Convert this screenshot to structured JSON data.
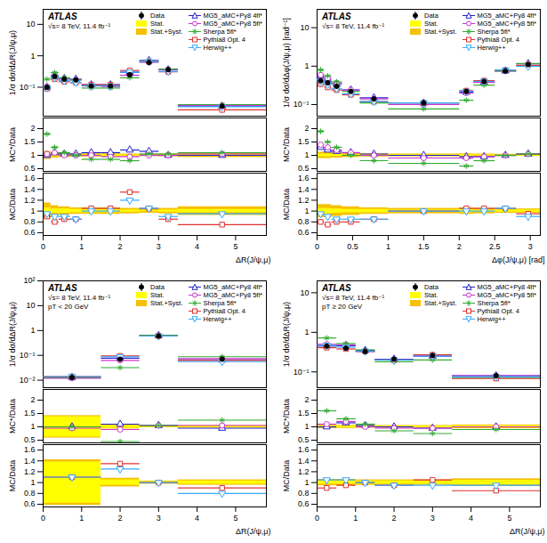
{
  "chart_data": [
    {
      "type": "step",
      "title": "ATLAS",
      "annotations": [
        "√s= 8 TeV, 11.4 fb⁻¹"
      ],
      "x_label": "ΔR(J/ψ,μ)",
      "y_label": "1/σ dσ/dΔR(J/ψ,μ)",
      "log": "y",
      "legend": "top-right",
      "bins": [
        0,
        0.2,
        0.4,
        0.7,
        1.0,
        1.5,
        2.0,
        2.5,
        3.0,
        3.5,
        5.8
      ],
      "xlim": [
        0,
        5.8
      ],
      "xticks": [
        0,
        1,
        2,
        3,
        4,
        5
      ],
      "ylim": [
        0.012,
        30
      ],
      "yticks": [
        {
          "value": 0.1,
          "label": "10⁻¹"
        },
        1,
        10
      ],
      "data": {
        "name": "Data",
        "color": "#000000",
        "marker": "circle",
        "values": [
          0.1,
          0.22,
          0.18,
          0.17,
          0.11,
          0.11,
          0.25,
          0.62,
          0.36,
          0.025
        ]
      },
      "bands": [
        {
          "name": "Stat.",
          "color": "#ffff00",
          "values": [
            0.06,
            0.04,
            0.04,
            0.03,
            0.03,
            0.03,
            0.02,
            0.01,
            0.02,
            0.03
          ]
        },
        {
          "name": "Stat.+Syst.",
          "color": "#f5c000",
          "values": [
            0.15,
            0.1,
            0.08,
            0.06,
            0.06,
            0.06,
            0.05,
            0.04,
            0.05,
            0.08
          ]
        }
      ],
      "series": [
        {
          "name": "MG5_aMC+Py8 4fl*",
          "color": "#2222cc",
          "marker": "triangle-up",
          "values": [
            0.1,
            0.24,
            0.19,
            0.18,
            0.12,
            0.12,
            0.3,
            0.71,
            0.36,
            0.025
          ]
        },
        {
          "name": "MG5_aMC+Py8 5fl*",
          "color": "#cc33cc",
          "marker": "circle",
          "values": [
            0.105,
            0.24,
            0.18,
            0.17,
            0.11,
            0.105,
            0.24,
            0.62,
            0.36,
            0.026
          ]
        },
        {
          "name": "Sherpa 5fl*",
          "color": "#33aa33",
          "marker": "star",
          "values": [
            0.18,
            0.29,
            0.2,
            0.17,
            0.094,
            0.094,
            0.2,
            0.65,
            0.38,
            0.028
          ]
        },
        {
          "name": "Pythia8 Opt. 4",
          "color": "#e03030",
          "marker": "square",
          "values": [
            0.09,
            0.18,
            0.15,
            0.14,
            0.12,
            0.12,
            0.34,
            0.65,
            0.31,
            0.019
          ]
        },
        {
          "name": "Herwig++",
          "color": "#33aaff",
          "marker": "triangle-down",
          "values": [
            0.095,
            0.2,
            0.16,
            0.14,
            0.11,
            0.11,
            0.3,
            0.65,
            0.32,
            0.024
          ]
        }
      ],
      "ratio_panels": [
        {
          "label": "MC*/Data",
          "ylim": [
            0.4,
            2.4
          ],
          "yticks": [
            0.5,
            1,
            1.5,
            2
          ],
          "series": [
            {
              "name": "MG5_aMC+Py8 4fl*",
              "values": [
                1.0,
                1.1,
                1.05,
                1.05,
                1.1,
                1.1,
                1.2,
                1.15,
                1.0,
                1.0
              ]
            },
            {
              "name": "MG5_aMC+Py8 5fl*",
              "values": [
                1.05,
                1.1,
                1.0,
                1.0,
                1.0,
                0.95,
                0.95,
                1.0,
                1.0,
                1.05
              ]
            },
            {
              "name": "Sherpa 5fl*",
              "values": [
                1.8,
                1.3,
                1.1,
                1.0,
                0.85,
                0.85,
                0.8,
                1.05,
                1.05,
                1.1
              ]
            }
          ]
        },
        {
          "label": "MC/Data",
          "ylim": [
            0.55,
            1.7
          ],
          "yticks": [
            0.6,
            0.8,
            1,
            1.2,
            1.4,
            1.6
          ],
          "series": [
            {
              "name": "Pythia8 Opt. 4",
              "values": [
                0.9,
                0.8,
                0.85,
                0.85,
                1.05,
                1.05,
                1.35,
                1.05,
                0.85,
                0.75
              ]
            },
            {
              "name": "Herwig++",
              "values": [
                0.95,
                0.9,
                0.9,
                0.85,
                1.0,
                1.0,
                1.2,
                1.05,
                0.9,
                0.95
              ]
            }
          ]
        }
      ]
    },
    {
      "type": "step",
      "title": "ATLAS",
      "annotations": [
        "√s= 8 TeV, 11.4 fb⁻¹"
      ],
      "x_label": "Δφ(J/ψ,μ) [rad]",
      "y_label": "1/σ dσ/dΔφ(J/ψ,μ) [rad⁻¹]",
      "log": "y",
      "legend": "top-right",
      "bins": [
        0,
        0.1,
        0.2,
        0.35,
        0.6,
        1.0,
        2.0,
        2.2,
        2.5,
        2.8,
        3.1416
      ],
      "xlim": [
        0,
        3.1416
      ],
      "xticks": [
        0,
        0.5,
        1,
        1.5,
        2,
        2.5,
        3
      ],
      "ylim": [
        0.05,
        30
      ],
      "yticks": [
        {
          "value": 0.1,
          "label": "10⁻¹"
        },
        1,
        10
      ],
      "data": {
        "name": "Data",
        "color": "#000000",
        "marker": "circle",
        "values": [
          0.42,
          0.37,
          0.3,
          0.22,
          0.14,
          0.11,
          0.22,
          0.4,
          0.75,
          1.1
        ]
      },
      "bands": [
        {
          "name": "Stat.",
          "color": "#ffff00",
          "values": [
            0.05,
            0.05,
            0.04,
            0.03,
            0.03,
            0.02,
            0.03,
            0.02,
            0.02,
            0.02
          ]
        },
        {
          "name": "Stat.+Syst.",
          "color": "#f5c000",
          "values": [
            0.12,
            0.12,
            0.1,
            0.08,
            0.06,
            0.05,
            0.06,
            0.05,
            0.04,
            0.04
          ]
        }
      ],
      "series": [
        {
          "name": "MG5_aMC+Py8 4fl*",
          "color": "#2222cc",
          "marker": "triangle-up",
          "values": [
            0.55,
            0.44,
            0.35,
            0.24,
            0.15,
            0.11,
            0.21,
            0.38,
            0.75,
            1.16
          ]
        },
        {
          "name": "MG5_aMC+Py8 5fl*",
          "color": "#cc33cc",
          "marker": "circle",
          "values": [
            0.59,
            0.48,
            0.36,
            0.24,
            0.14,
            0.1,
            0.2,
            0.38,
            0.75,
            1.16
          ]
        },
        {
          "name": "Sherpa 5fl*",
          "color": "#33aa33",
          "marker": "star",
          "values": [
            0.8,
            0.56,
            0.39,
            0.22,
            0.11,
            0.077,
            0.13,
            0.32,
            0.75,
            1.16
          ]
        },
        {
          "name": "Pythia8 Opt. 4",
          "color": "#e03030",
          "marker": "square",
          "values": [
            0.34,
            0.28,
            0.24,
            0.18,
            0.12,
            0.11,
            0.23,
            0.42,
            0.79,
            1.05
          ]
        },
        {
          "name": "Herwig++",
          "color": "#33aaff",
          "marker": "triangle-down",
          "values": [
            0.4,
            0.33,
            0.26,
            0.19,
            0.12,
            0.11,
            0.22,
            0.4,
            0.79,
            0.99
          ]
        }
      ],
      "ratio_panels": [
        {
          "label": "MC*/Data",
          "ylim": [
            0.4,
            2.4
          ],
          "yticks": [
            0.5,
            1,
            1.5,
            2
          ],
          "series": [
            {
              "name": "MG5_aMC+Py8 4fl*",
              "values": [
                1.3,
                1.2,
                1.15,
                1.1,
                1.05,
                1.0,
                0.95,
                0.95,
                1.0,
                1.05
              ]
            },
            {
              "name": "MG5_aMC+Py8 5fl*",
              "values": [
                1.4,
                1.3,
                1.2,
                1.1,
                1.0,
                0.9,
                0.9,
                0.95,
                1.0,
                1.05
              ]
            },
            {
              "name": "Sherpa 5fl*",
              "values": [
                1.9,
                1.5,
                1.3,
                1.0,
                0.8,
                0.7,
                0.6,
                0.8,
                1.0,
                1.05
              ]
            }
          ]
        },
        {
          "label": "MC/Data",
          "ylim": [
            0.55,
            1.7
          ],
          "yticks": [
            0.6,
            0.8,
            1,
            1.2,
            1.4,
            1.6
          ],
          "series": [
            {
              "name": "Pythia8 Opt. 4",
              "values": [
                0.8,
                0.75,
                0.8,
                0.8,
                0.85,
                1.0,
                1.05,
                1.05,
                1.05,
                0.95
              ]
            },
            {
              "name": "Herwig++",
              "values": [
                0.95,
                0.9,
                0.85,
                0.85,
                0.85,
                1.0,
                1.0,
                1.0,
                1.05,
                0.9
              ]
            }
          ]
        }
      ]
    },
    {
      "type": "step",
      "title": "ATLAS",
      "annotations": [
        "√s= 8 TeV, 11.4 fb⁻¹",
        "pT < 20 GeV"
      ],
      "x_label": "ΔR(J/ψ,μ)",
      "y_label": "1/σ dσ/dΔR(J/ψ,μ)",
      "log": "y",
      "legend": "top-right",
      "bins": [
        0,
        1.5,
        2.5,
        3.5,
        5.8
      ],
      "xlim": [
        0,
        5.8
      ],
      "xticks": [
        0,
        1,
        2,
        3,
        4,
        5
      ],
      "ylim": [
        0.005,
        100
      ],
      "yticks": [
        {
          "value": 0.01,
          "label": "10⁻²"
        },
        {
          "value": 0.1,
          "label": "10⁻¹"
        },
        1,
        10,
        {
          "value": 100,
          "label": "10²"
        }
      ],
      "data": {
        "name": "Data",
        "color": "#000000",
        "marker": "circle",
        "values": [
          0.013,
          0.07,
          0.6,
          0.07
        ]
      },
      "bands": [
        {
          "name": "Stat.",
          "color": "#ffff00",
          "values": [
            0.38,
            0.05,
            0.02,
            0.03
          ]
        },
        {
          "name": "Stat.+Syst.",
          "color": "#f5c000",
          "values": [
            0.42,
            0.08,
            0.03,
            0.05
          ]
        }
      ],
      "series": [
        {
          "name": "MG5_aMC+Py8 4fl*",
          "color": "#2222cc",
          "marker": "triangle-up",
          "values": [
            0.013,
            0.077,
            0.63,
            0.066
          ]
        },
        {
          "name": "MG5_aMC+Py8 5fl*",
          "color": "#cc33cc",
          "marker": "circle",
          "values": [
            0.012,
            0.063,
            0.63,
            0.074
          ]
        },
        {
          "name": "Sherpa 5fl*",
          "color": "#33aa33",
          "marker": "star",
          "values": [
            0.013,
            0.032,
            0.63,
            0.088
          ]
        },
        {
          "name": "Pythia8 Opt. 4",
          "color": "#e03030",
          "marker": "square",
          "values": [
            0.014,
            0.095,
            0.6,
            0.063
          ]
        },
        {
          "name": "Herwig++",
          "color": "#33aaff",
          "marker": "triangle-down",
          "values": [
            0.014,
            0.088,
            0.6,
            0.056
          ]
        }
      ],
      "ratio_panels": [
        {
          "label": "MC*/Data",
          "ylim": [
            0.4,
            2.4
          ],
          "yticks": [
            0.5,
            1,
            1.5,
            2
          ],
          "series": [
            {
              "name": "MG5_aMC+Py8 4fl*",
              "values": [
                1.0,
                1.1,
                1.05,
                0.95
              ]
            },
            {
              "name": "MG5_aMC+Py8 5fl*",
              "values": [
                0.95,
                0.9,
                1.05,
                1.05
              ]
            },
            {
              "name": "Sherpa 5fl*",
              "values": [
                1.0,
                0.45,
                1.05,
                1.25
              ]
            }
          ]
        },
        {
          "label": "MC/Data",
          "ylim": [
            0.55,
            1.7
          ],
          "yticks": [
            0.6,
            0.8,
            1,
            1.2,
            1.4,
            1.6
          ],
          "series": [
            {
              "name": "Pythia8 Opt. 4",
              "values": [
                1.1,
                1.35,
                1.0,
                0.9
              ]
            },
            {
              "name": "Herwig++",
              "values": [
                1.1,
                1.25,
                1.0,
                0.8
              ]
            }
          ]
        }
      ]
    },
    {
      "type": "step",
      "title": "ATLAS",
      "annotations": [
        "√s= 8 TeV, 11.4 fb⁻¹",
        "pT ≥ 20 GeV"
      ],
      "x_label": "ΔR(J/ψ,μ)",
      "y_label": "1/σ dσ/dΔR(J/ψ,μ)",
      "log": "y",
      "legend": "top-right",
      "bins": [
        0,
        0.5,
        1.0,
        1.5,
        2.5,
        3.5,
        5.8
      ],
      "xlim": [
        0,
        5.8
      ],
      "xticks": [
        0,
        1,
        2,
        3,
        4,
        5
      ],
      "ylim": [
        0.04,
        20
      ],
      "yticks": [
        {
          "value": 0.1,
          "label": "10⁻¹"
        },
        1,
        10
      ],
      "data": {
        "name": "Data",
        "color": "#000000",
        "marker": "circle",
        "values": [
          0.45,
          0.4,
          0.33,
          0.21,
          0.26,
          0.08
        ]
      },
      "bands": [
        {
          "name": "Stat.",
          "color": "#ffff00",
          "values": [
            0.03,
            0.03,
            0.03,
            0.03,
            0.03,
            0.04
          ]
        },
        {
          "name": "Stat.+Syst.",
          "color": "#f5c000",
          "values": [
            0.06,
            0.06,
            0.05,
            0.05,
            0.05,
            0.07
          ]
        }
      ],
      "series": [
        {
          "name": "MG5_aMC+Py8 4fl*",
          "color": "#2222cc",
          "marker": "triangle-up",
          "values": [
            0.45,
            0.46,
            0.35,
            0.21,
            0.25,
            0.08
          ]
        },
        {
          "name": "MG5_aMC+Py8 5fl*",
          "color": "#cc33cc",
          "marker": "circle",
          "values": [
            0.5,
            0.48,
            0.33,
            0.2,
            0.25,
            0.08
          ]
        },
        {
          "name": "Sherpa 5fl*",
          "color": "#33aa33",
          "marker": "star",
          "values": [
            0.72,
            0.52,
            0.36,
            0.18,
            0.2,
            0.072
          ]
        },
        {
          "name": "Pythia8 Opt. 4",
          "color": "#e03030",
          "marker": "square",
          "values": [
            0.41,
            0.38,
            0.33,
            0.2,
            0.27,
            0.068
          ]
        },
        {
          "name": "Herwig++",
          "color": "#33aaff",
          "marker": "triangle-down",
          "values": [
            0.47,
            0.42,
            0.33,
            0.2,
            0.25,
            0.076
          ]
        }
      ],
      "ratio_panels": [
        {
          "label": "MC*/Data",
          "ylim": [
            0.4,
            2.4
          ],
          "yticks": [
            0.5,
            1,
            1.5,
            2
          ],
          "series": [
            {
              "name": "MG5_aMC+Py8 4fl*",
              "values": [
                1.0,
                1.15,
                1.05,
                1.0,
                0.95,
                1.0
              ]
            },
            {
              "name": "MG5_aMC+Py8 5fl*",
              "values": [
                1.1,
                1.2,
                1.0,
                0.95,
                0.95,
                1.0
              ]
            },
            {
              "name": "Sherpa 5fl*",
              "values": [
                1.6,
                1.3,
                1.1,
                0.85,
                0.75,
                0.9
              ]
            }
          ]
        },
        {
          "label": "MC/Data",
          "ylim": [
            0.55,
            1.7
          ],
          "yticks": [
            0.6,
            0.8,
            1,
            1.2,
            1.4,
            1.6
          ],
          "series": [
            {
              "name": "Pythia8 Opt. 4",
              "values": [
                0.9,
                0.95,
                1.0,
                0.95,
                1.05,
                0.85
              ]
            },
            {
              "name": "Herwig++",
              "values": [
                1.05,
                1.05,
                1.0,
                0.95,
                0.95,
                0.95
              ]
            }
          ]
        }
      ]
    }
  ]
}
